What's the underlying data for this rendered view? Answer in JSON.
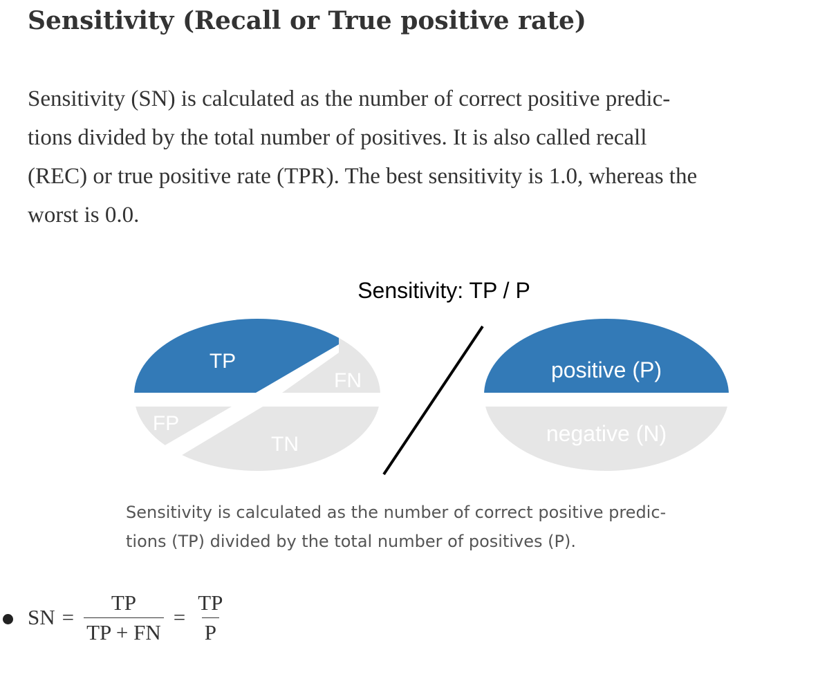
{
  "heading": "Sensitivity (Recall or True positive rate)",
  "paragraph": {
    "lines": [
      "Sensitivity (SN) is calculated as the number of correct positive predic-",
      "tions divided by the total number of positives. It is also called recall",
      "(REC) or true positive rate (TPR). The best sensitivity is 1.0, whereas the",
      "worst is 0.0."
    ]
  },
  "figure": {
    "title": "Sensitivity: TP / P",
    "left_labels": {
      "tp": "TP",
      "fn": "FN",
      "fp": "FP",
      "tn": "TN"
    },
    "right_labels": {
      "positive": "positive (P)",
      "negative": "negative (N)"
    },
    "colors": {
      "highlight": "#337ab7",
      "muted": "#e6e6e6",
      "text_light": "#ffffff",
      "line": "#000000"
    }
  },
  "caption": {
    "lines": [
      "Sensitivity is calculated as the number of correct positive predic-",
      "tions (TP) divided by the total number of positives (P)."
    ]
  },
  "formula": {
    "lhs": "SN",
    "equals": "=",
    "frac1_num": "TP",
    "frac1_den": "TP + FN",
    "frac2_num": "TP",
    "frac2_den": "P"
  }
}
